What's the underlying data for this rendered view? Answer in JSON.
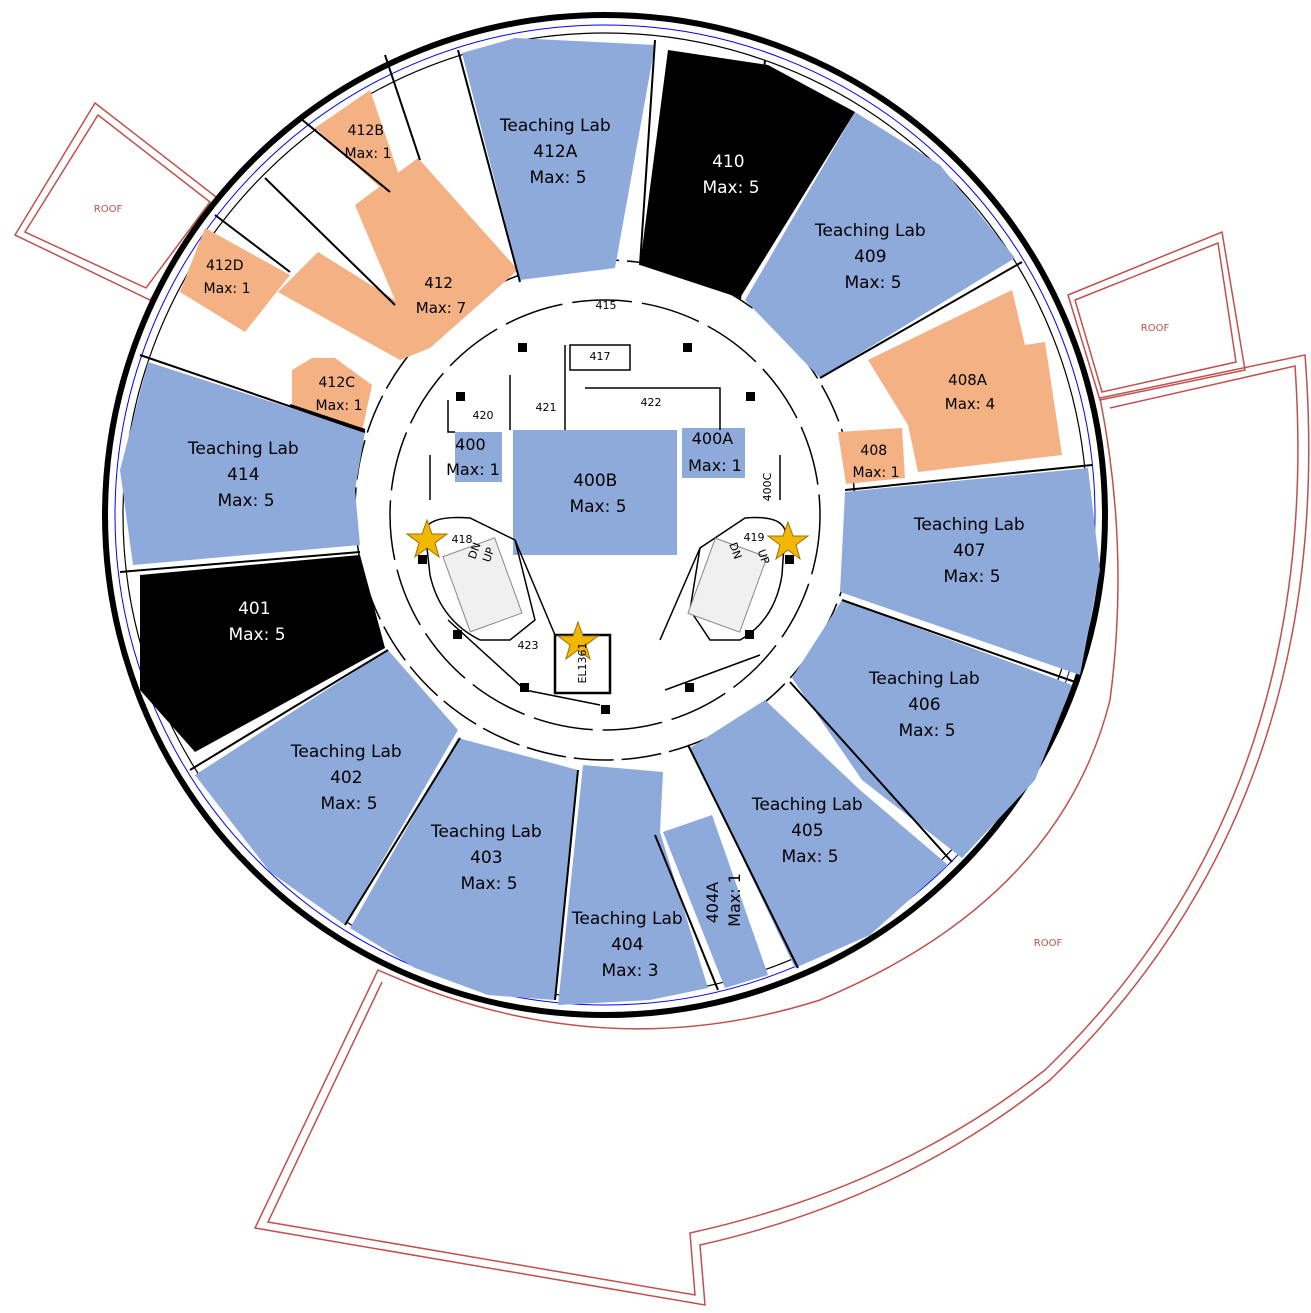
{
  "colors": {
    "teaching_lab": "#8eaadb",
    "office": "#f4b183",
    "closed": "#000000",
    "roof_line": "#c0504d",
    "star": "#f2b705",
    "wall": "#000000",
    "window": "#0000ff"
  },
  "roof_labels": [
    "ROOF",
    "ROOF",
    "ROOF"
  ],
  "rooms": [
    {
      "id": "r412A",
      "lines": [
        "Teaching Lab",
        "412A",
        "Max: 5"
      ]
    },
    {
      "id": "r410",
      "lines": [
        "410",
        "Max: 5"
      ]
    },
    {
      "id": "r409",
      "lines": [
        "Teaching Lab",
        "409",
        "Max: 5"
      ]
    },
    {
      "id": "r408A",
      "lines": [
        "408A",
        "Max: 4"
      ]
    },
    {
      "id": "r408",
      "lines": [
        "408",
        "Max: 1"
      ]
    },
    {
      "id": "r407",
      "lines": [
        "Teaching Lab",
        "407",
        "Max: 5"
      ]
    },
    {
      "id": "r406",
      "lines": [
        "Teaching Lab",
        "406",
        "Max: 5"
      ]
    },
    {
      "id": "r405",
      "lines": [
        "Teaching Lab",
        "405",
        "Max: 5"
      ]
    },
    {
      "id": "r404A",
      "lines": [
        "404A",
        "Max: 1"
      ]
    },
    {
      "id": "r404",
      "lines": [
        "Teaching Lab",
        "404",
        "Max: 3"
      ]
    },
    {
      "id": "r403",
      "lines": [
        "Teaching Lab",
        "403",
        "Max: 5"
      ]
    },
    {
      "id": "r402",
      "lines": [
        "Teaching Lab",
        "402",
        "Max: 5"
      ]
    },
    {
      "id": "r401",
      "lines": [
        "401",
        "Max: 5"
      ]
    },
    {
      "id": "r414",
      "lines": [
        "Teaching Lab",
        "414",
        "Max: 5"
      ]
    },
    {
      "id": "r412C",
      "lines": [
        "412C",
        "Max: 1"
      ]
    },
    {
      "id": "r412D",
      "lines": [
        "412D",
        "Max: 1"
      ]
    },
    {
      "id": "r412",
      "lines": [
        "412",
        "Max: 7"
      ]
    },
    {
      "id": "r412B",
      "lines": [
        "412B",
        "Max: 1"
      ]
    },
    {
      "id": "r400",
      "lines": [
        "400",
        "Max: 1"
      ]
    },
    {
      "id": "r400B",
      "lines": [
        "400B",
        "Max: 5"
      ]
    },
    {
      "id": "r400A",
      "lines": [
        "400A",
        "Max: 1"
      ]
    }
  ],
  "small_labels": [
    "415",
    "417",
    "420",
    "421",
    "422",
    "400C",
    "418",
    "419",
    "423",
    "EL1361"
  ],
  "stair_labels": [
    "DN",
    "UP",
    "DN",
    "UP"
  ]
}
